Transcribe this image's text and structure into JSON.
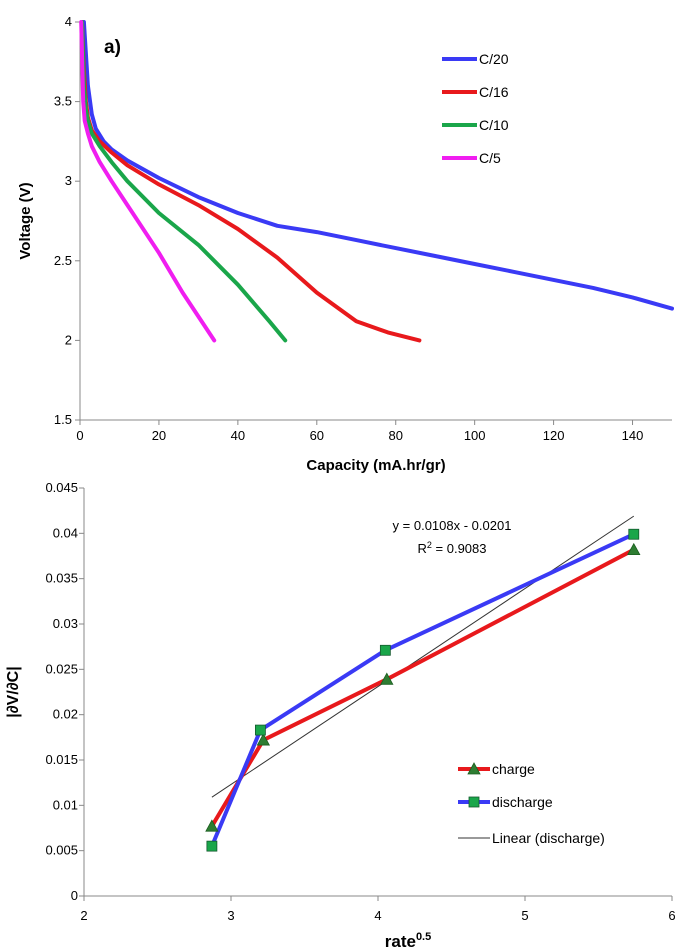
{
  "chart_data": [
    {
      "type": "line",
      "panel_label": "a)",
      "xlabel": "Capacity (mA.hr/gr)",
      "ylabel": "Voltage (V)",
      "xlim": [
        0,
        150
      ],
      "ylim": [
        1.5,
        4
      ],
      "xticks": [
        "0",
        "20",
        "40",
        "60",
        "80",
        "100",
        "120",
        "140"
      ],
      "yticks": [
        "1.5",
        "2",
        "2.5",
        "3",
        "3.5",
        "4"
      ],
      "grid": false,
      "legend_position": "top-right",
      "series": [
        {
          "name": "C/20",
          "color": "#3a3af5",
          "x": [
            1,
            1.5,
            2,
            3,
            4,
            6,
            8,
            12,
            20,
            30,
            40,
            50,
            60,
            70,
            80,
            90,
            100,
            110,
            120,
            130,
            140,
            150
          ],
          "y": [
            4.0,
            3.8,
            3.6,
            3.42,
            3.33,
            3.25,
            3.2,
            3.13,
            3.02,
            2.9,
            2.8,
            2.72,
            2.68,
            2.63,
            2.58,
            2.53,
            2.48,
            2.43,
            2.38,
            2.33,
            2.27,
            2.2
          ]
        },
        {
          "name": "C/16",
          "color": "#e8191c",
          "x": [
            0.5,
            1,
            1.5,
            2,
            3,
            5,
            8,
            12,
            20,
            30,
            40,
            50,
            60,
            70,
            78,
            86
          ],
          "y": [
            4.0,
            3.7,
            3.5,
            3.4,
            3.32,
            3.25,
            3.18,
            3.1,
            2.98,
            2.85,
            2.7,
            2.52,
            2.3,
            2.12,
            2.05,
            2.0
          ]
        },
        {
          "name": "C/10",
          "color": "#1aa64a",
          "x": [
            0.5,
            1,
            1.5,
            2,
            3,
            5,
            8,
            12,
            20,
            30,
            40,
            48,
            52
          ],
          "y": [
            4.0,
            3.6,
            3.45,
            3.38,
            3.3,
            3.22,
            3.12,
            3.0,
            2.8,
            2.6,
            2.35,
            2.12,
            2.0
          ]
        },
        {
          "name": "C/5",
          "color": "#f01ef0",
          "x": [
            0.3,
            0.8,
            1.2,
            2,
            3,
            5,
            8,
            12,
            20,
            26,
            30,
            34
          ],
          "y": [
            4.0,
            3.5,
            3.38,
            3.3,
            3.22,
            3.12,
            3.0,
            2.85,
            2.55,
            2.3,
            2.15,
            2.0
          ]
        }
      ]
    },
    {
      "type": "line",
      "xlabel": "rate",
      "xlabel_sup": "0.5",
      "ylabel": "|∂V/∂C|",
      "xlim": [
        2,
        6
      ],
      "ylim": [
        0,
        0.045
      ],
      "xticks": [
        "2",
        "3",
        "4",
        "5",
        "6"
      ],
      "yticks": [
        "0",
        "0.005",
        "0.01",
        "0.015",
        "0.02",
        "0.025",
        "0.03",
        "0.035",
        "0.04",
        "0.045"
      ],
      "grid": false,
      "legend_position": "bottom-right",
      "annotation_equation": "y = 0.0108x - 0.0201",
      "annotation_r2_prefix": "R",
      "annotation_r2_sup": "2",
      "annotation_r2_value": " = 0.9083",
      "series": [
        {
          "name": "charge",
          "color": "#e8191c",
          "marker": "triangle",
          "marker_color": "#2e7d32",
          "x": [
            2.87,
            3.22,
            4.06,
            5.74
          ],
          "y": [
            0.0077,
            0.0172,
            0.0239,
            0.0382
          ]
        },
        {
          "name": "discharge",
          "color": "#3a3af5",
          "marker": "square",
          "marker_color": "#1aa64a",
          "x": [
            2.87,
            3.2,
            4.05,
            5.74
          ],
          "y": [
            0.0055,
            0.0183,
            0.0271,
            0.0399
          ]
        },
        {
          "name": "Linear (discharge)",
          "color": "#333333",
          "marker": "none",
          "x": [
            2.87,
            5.74
          ],
          "y": [
            0.0109,
            0.0419
          ]
        }
      ]
    }
  ]
}
